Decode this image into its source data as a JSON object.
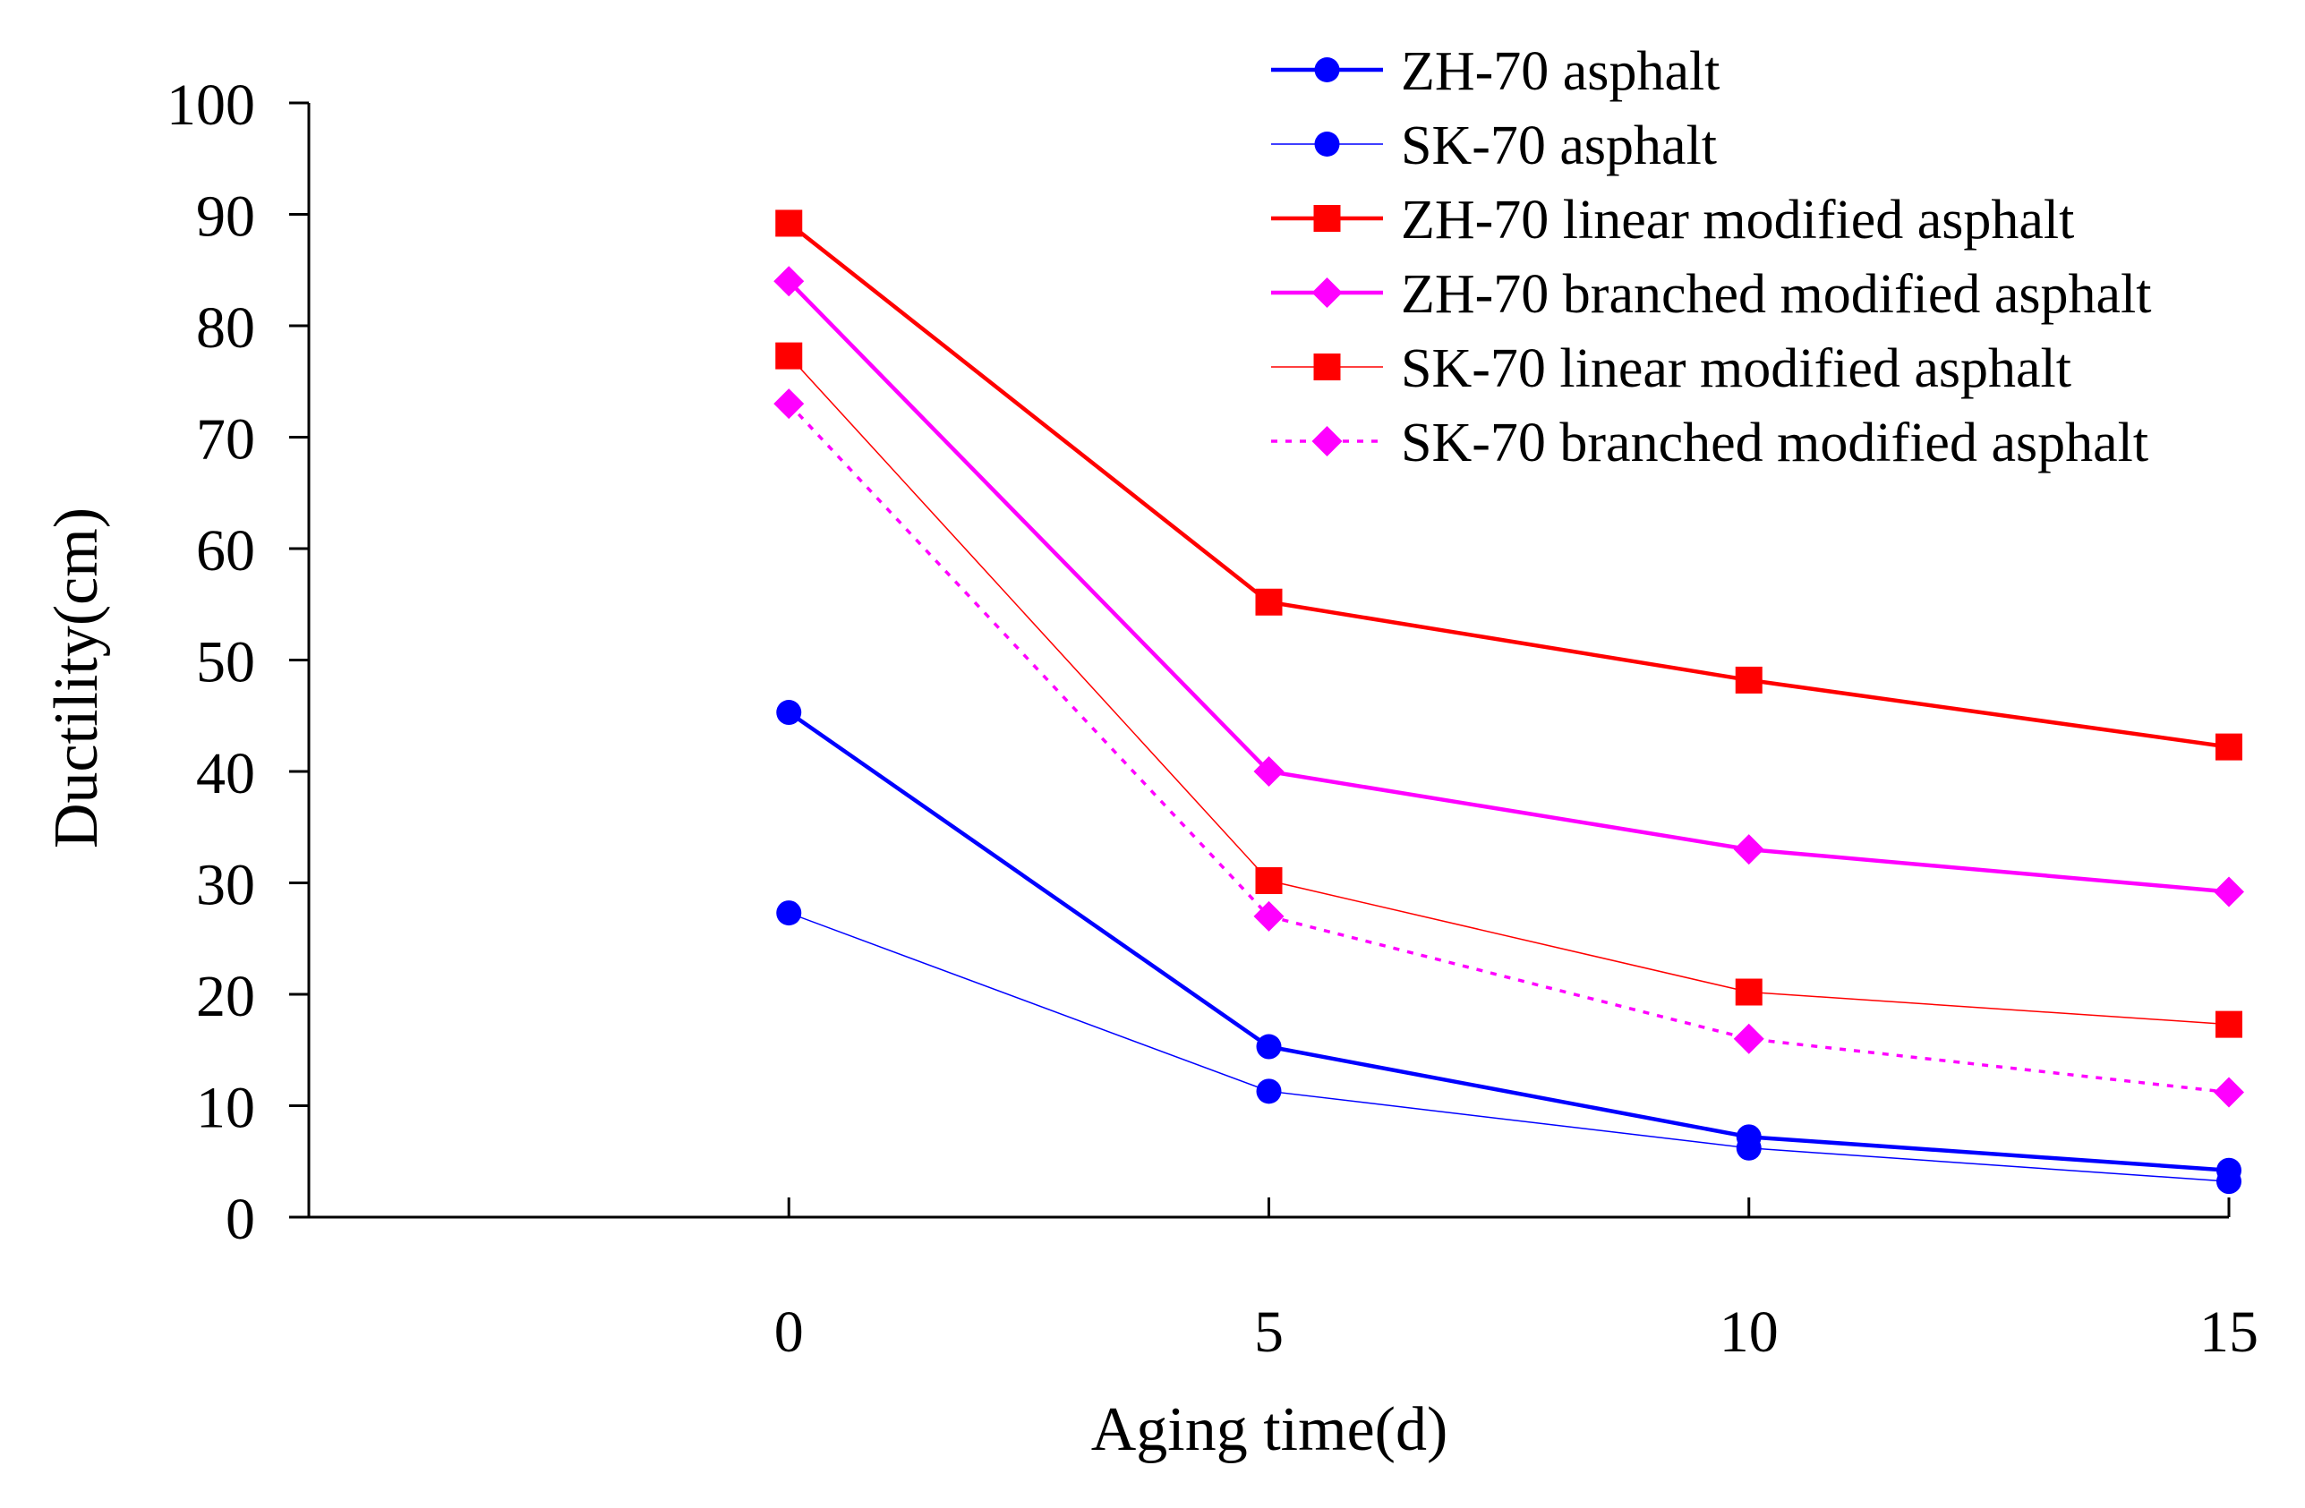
{
  "chart_data": {
    "type": "line",
    "title": "",
    "xlabel": "Aging time(d)",
    "ylabel": "Ductility(cm)",
    "x": [
      0,
      5,
      10,
      15
    ],
    "xlim": [
      -5,
      15
    ],
    "ylim": [
      0,
      100
    ],
    "yticks": [
      0,
      10,
      20,
      30,
      40,
      50,
      60,
      70,
      80,
      90,
      100
    ],
    "xticks": [
      0,
      5,
      10,
      15
    ],
    "grid": false,
    "legend_position": "top-right",
    "series": [
      {
        "name": " ZH-70 asphalt",
        "values": [
          45.3,
          15.3,
          7.2,
          4.2
        ],
        "color": "#0000ff",
        "marker": "circle",
        "line": "solid",
        "weight": "thick"
      },
      {
        "name": "SK-70 asphalt",
        "values": [
          27.3,
          11.3,
          6.2,
          3.2
        ],
        "color": "#0000ff",
        "marker": "circle",
        "line": "solid",
        "weight": "thin"
      },
      {
        "name": "ZH-70 linear modified asphalt",
        "values": [
          89.2,
          55.2,
          48.2,
          42.2
        ],
        "color": "#ff0000",
        "marker": "square",
        "line": "solid",
        "weight": "thick"
      },
      {
        "name": "ZH-70 branched modified asphalt",
        "values": [
          84.0,
          40.0,
          33.0,
          29.2
        ],
        "color": "#ff00ff",
        "marker": "diamond",
        "line": "solid",
        "weight": "thick"
      },
      {
        "name": "SK-70 linear modified asphalt",
        "values": [
          77.3,
          30.2,
          20.2,
          17.3
        ],
        "color": "#ff0000",
        "marker": "square",
        "line": "solid",
        "weight": "thin"
      },
      {
        "name": "SK-70 branched modified asphalt",
        "values": [
          73.0,
          27.0,
          16.0,
          11.2
        ],
        "color": "#ff00ff",
        "marker": "diamond",
        "line": "dotted",
        "weight": "medium"
      }
    ]
  }
}
